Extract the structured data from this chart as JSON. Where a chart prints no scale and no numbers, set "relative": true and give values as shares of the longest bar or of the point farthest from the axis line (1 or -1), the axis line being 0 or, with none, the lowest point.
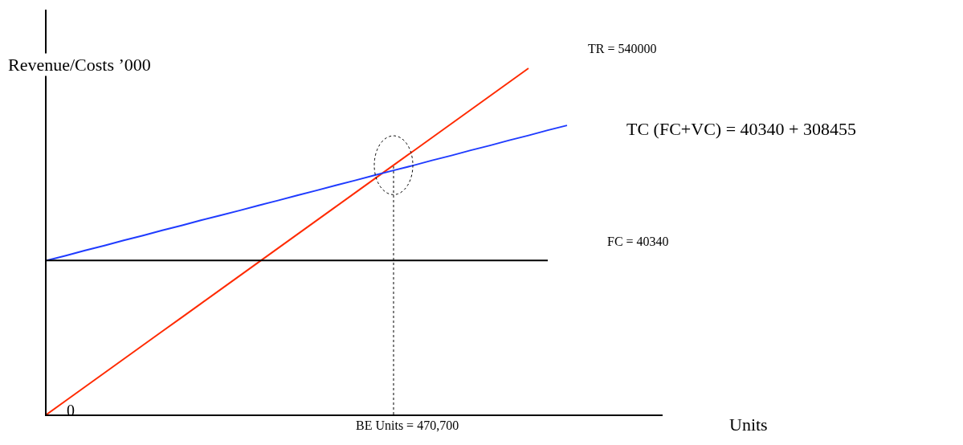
{
  "chart_data": {
    "type": "line",
    "relative": true,
    "xlabel": "Units",
    "ylabel": "Revenue/Costs ’000",
    "categories": [
      null,
      null,
      null,
      null,
      null,
      null,
      null,
      null,
      null,
      null,
      null,
      null,
      null,
      null,
      null,
      null,
      null,
      null,
      null,
      null,
      null,
      null,
      null,
      null,
      null,
      null,
      null,
      null,
      null,
      null,
      null,
      null,
      null
    ],
    "series": [
      {
        "name": "TR = 540000",
        "color": "#ff2a00",
        "values": [
          0,
          0.04,
          0.08,
          0.12,
          0.16,
          0.2,
          0.24,
          0.28,
          0.32,
          0.36,
          0.4,
          0.44,
          0.48,
          0.52,
          0.56,
          0.6,
          0.64,
          0.68,
          0.72,
          0.76,
          0.8,
          0.84,
          0.88,
          0.92,
          0.96,
          1,
          null,
          null,
          null,
          null,
          null,
          null,
          null
        ]
      },
      {
        "name": "TC (FC+VC) = 40340 + 308455",
        "color": "#1f3bff",
        "values": [
          0.445,
          0.459,
          0.474,
          0.488,
          0.503,
          0.517,
          0.532,
          0.546,
          0.561,
          0.575,
          0.589,
          0.604,
          0.618,
          0.633,
          0.647,
          0.662,
          0.676,
          0.691,
          0.705,
          0.719,
          0.734,
          0.748,
          0.763,
          0.777,
          0.792,
          0.806,
          0.821,
          0.835,
          null,
          null,
          null,
          null,
          null
        ]
      },
      {
        "name": "FC = 40340",
        "color": "#000000",
        "values": [
          0.445,
          0.445,
          0.445,
          0.445,
          0.445,
          0.445,
          0.445,
          0.445,
          0.445,
          0.445,
          0.445,
          0.445,
          0.445,
          0.445,
          0.445,
          0.445,
          0.445,
          0.445,
          0.445,
          0.445,
          0.445,
          0.445,
          0.445,
          0.445,
          0.445,
          0.445,
          0.445,
          null,
          null,
          null,
          null,
          null,
          null
        ]
      }
    ],
    "annotations": [
      "0",
      "BE Units = 470,700"
    ],
    "legend": false,
    "marker": "none",
    "line_style": "solid"
  }
}
